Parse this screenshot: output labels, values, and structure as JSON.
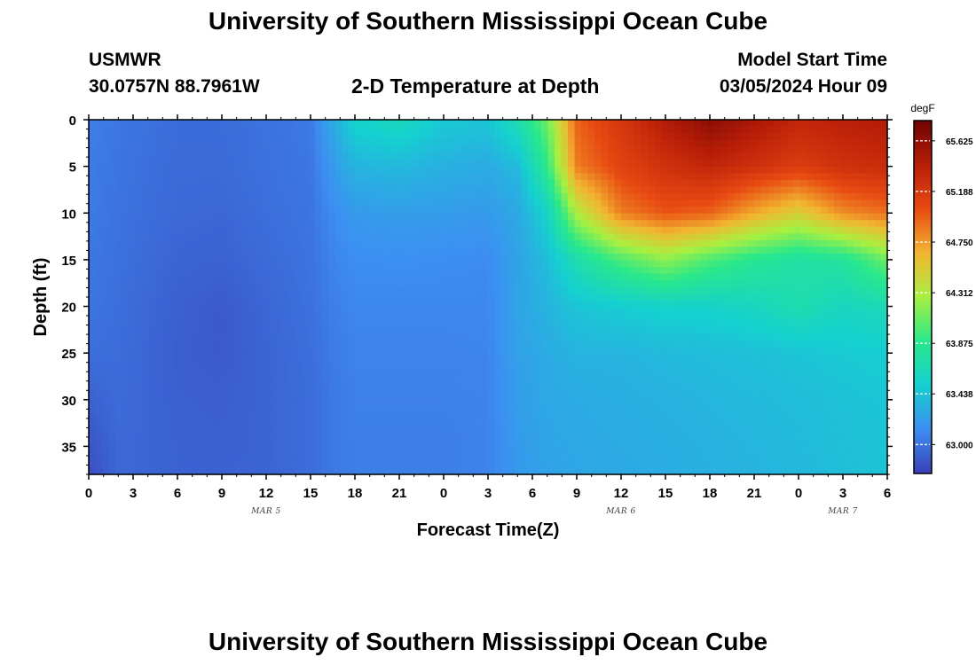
{
  "header": {
    "title": "University of Southern Mississippi Ocean Cube",
    "station": "USMWR",
    "coords": "30.0757N  88.7961W",
    "chart_title": "2-D Temperature at Depth",
    "model_start_label": "Model Start Time",
    "model_start_value": "03/05/2024 Hour 09"
  },
  "footer": {
    "title": "University of Southern Mississippi Ocean Cube"
  },
  "chart_data": {
    "type": "heatmap",
    "title": "2-D Temperature at Depth",
    "xlabel": "Forecast Time(Z)",
    "ylabel": "Depth (ft)",
    "x_tick_labels": [
      "0",
      "3",
      "6",
      "9",
      "12",
      "15",
      "18",
      "21",
      "0",
      "3",
      "6",
      "9",
      "12",
      "15",
      "18",
      "21",
      "0",
      "3",
      "6"
    ],
    "date_labels": [
      {
        "label": "MAR 5",
        "tick_index": 4
      },
      {
        "label": "MAR 6",
        "tick_index": 12
      },
      {
        "label": "MAR 7",
        "tick_index": 17
      }
    ],
    "y_ticks": [
      0,
      5,
      10,
      15,
      20,
      25,
      30,
      35
    ],
    "ylim": [
      0,
      38
    ],
    "xlim": [
      0,
      54
    ],
    "x_units": "forecast hours from 03/05 00Z",
    "colorbar": {
      "unit": "degF",
      "ticks": [
        "65.625",
        "65.188",
        "64.750",
        "64.312",
        "63.875",
        "63.438",
        "63.000"
      ],
      "tick_values": [
        65.625,
        65.188,
        64.75,
        64.312,
        63.875,
        63.438,
        63.0
      ],
      "range": [
        62.75,
        65.8
      ],
      "colors": [
        "#3a3fb8",
        "#3d8ef2",
        "#15d0d0",
        "#29e88a",
        "#a8f040",
        "#f2b530",
        "#e84a12",
        "#b81e08",
        "#6e0303"
      ]
    },
    "field": {
      "depth_levels": [
        0,
        5,
        10,
        15,
        20,
        25,
        30,
        35,
        38
      ],
      "hours": [
        0,
        2,
        6,
        9,
        12,
        15,
        16.5,
        18,
        21,
        24,
        27,
        29,
        31,
        33,
        36,
        39,
        42,
        45,
        48,
        51,
        54
      ],
      "values": [
        [
          63.06,
          63.02,
          62.97,
          62.97,
          63.0,
          63.04,
          63.3,
          63.55,
          63.62,
          63.48,
          63.45,
          63.7,
          64.1,
          64.95,
          65.2,
          65.45,
          65.65,
          65.5,
          65.35,
          65.4,
          65.45
        ],
        [
          63.05,
          63.01,
          62.96,
          62.96,
          62.99,
          63.02,
          63.2,
          63.35,
          63.38,
          63.33,
          63.3,
          63.38,
          63.9,
          64.85,
          65.1,
          65.25,
          65.35,
          65.25,
          65.15,
          65.25,
          65.3
        ],
        [
          63.04,
          63.0,
          62.95,
          62.94,
          62.98,
          63.01,
          63.12,
          63.2,
          63.22,
          63.21,
          63.2,
          63.28,
          63.55,
          64.3,
          64.85,
          65.0,
          64.95,
          64.7,
          64.5,
          64.8,
          64.9
        ],
        [
          63.02,
          62.99,
          62.93,
          62.92,
          62.96,
          63.0,
          63.08,
          63.13,
          63.14,
          63.13,
          63.12,
          63.25,
          63.4,
          63.7,
          64.0,
          64.2,
          64.0,
          63.85,
          63.75,
          63.8,
          64.1
        ],
        [
          63.01,
          62.98,
          62.91,
          62.88,
          62.94,
          62.99,
          63.06,
          63.1,
          63.1,
          63.1,
          63.1,
          63.26,
          63.35,
          63.45,
          63.5,
          63.55,
          63.55,
          63.6,
          63.7,
          63.6,
          63.65
        ],
        [
          62.98,
          62.97,
          62.9,
          62.88,
          62.93,
          62.98,
          63.04,
          63.08,
          63.08,
          63.08,
          63.09,
          63.24,
          63.3,
          63.35,
          63.35,
          63.38,
          63.4,
          63.42,
          63.45,
          63.48,
          63.5
        ],
        [
          62.92,
          62.96,
          62.91,
          62.9,
          62.93,
          62.97,
          63.03,
          63.07,
          63.07,
          63.07,
          63.08,
          63.22,
          63.28,
          63.3,
          63.32,
          63.34,
          63.36,
          63.38,
          63.4,
          63.43,
          63.46
        ],
        [
          62.85,
          62.95,
          62.92,
          62.91,
          62.93,
          62.97,
          63.03,
          63.06,
          63.06,
          63.06,
          63.08,
          63.2,
          63.26,
          63.28,
          63.3,
          63.32,
          63.34,
          63.36,
          63.38,
          63.42,
          63.44
        ],
        [
          62.82,
          62.95,
          62.92,
          62.92,
          62.93,
          62.97,
          63.03,
          63.06,
          63.06,
          63.06,
          63.08,
          63.2,
          63.25,
          63.27,
          63.29,
          63.31,
          63.33,
          63.35,
          63.37,
          63.41,
          63.44
        ]
      ]
    }
  }
}
